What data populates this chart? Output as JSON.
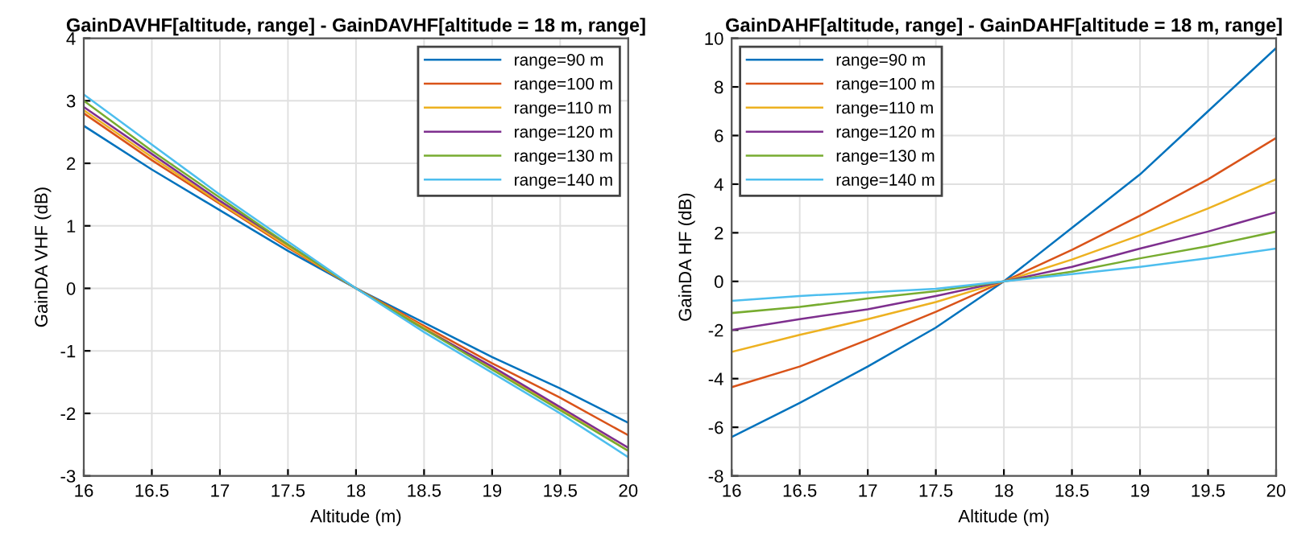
{
  "chart_data": [
    {
      "type": "line",
      "title": "GainDAVHF[altitude, range] - GainDAVHF[altitude = 18 m, range]",
      "xlabel": "Altitude (m)",
      "ylabel": "GainDA VHF (dB)",
      "x": [
        16,
        16.5,
        17,
        17.5,
        18,
        18.5,
        19,
        19.5,
        20
      ],
      "series": [
        {
          "name": "range=90 m",
          "color": "#0072bd",
          "values": [
            2.6,
            1.9,
            1.25,
            0.6,
            0,
            -0.55,
            -1.1,
            -1.6,
            -2.15
          ]
        },
        {
          "name": "range=100 m",
          "color": "#d95319",
          "values": [
            2.8,
            2.05,
            1.35,
            0.65,
            0,
            -0.6,
            -1.2,
            -1.75,
            -2.35
          ]
        },
        {
          "name": "range=110 m",
          "color": "#edb120",
          "values": [
            2.85,
            2.1,
            1.37,
            0.67,
            0,
            -0.63,
            -1.28,
            -1.93,
            -2.6
          ]
        },
        {
          "name": "range=120 m",
          "color": "#7e2f8e",
          "values": [
            2.9,
            2.15,
            1.4,
            0.7,
            0,
            -0.65,
            -1.25,
            -1.9,
            -2.55
          ]
        },
        {
          "name": "range=130 m",
          "color": "#77ac30",
          "values": [
            3.0,
            2.2,
            1.45,
            0.7,
            0,
            -0.65,
            -1.3,
            -1.95,
            -2.6
          ]
        },
        {
          "name": "range=140 m",
          "color": "#4dbeee",
          "values": [
            3.1,
            2.3,
            1.5,
            0.75,
            0,
            -0.7,
            -1.35,
            -2.0,
            -2.7
          ]
        }
      ],
      "xlim": [
        16,
        20
      ],
      "xticks": [
        16,
        16.5,
        17,
        17.5,
        18,
        18.5,
        19,
        19.5,
        20
      ],
      "ylim": [
        -3,
        4
      ],
      "yticks": [
        -3,
        -2,
        -1,
        0,
        1,
        2,
        3,
        4
      ],
      "grid": true,
      "legend": "top right",
      "line_style": "solid"
    },
    {
      "type": "line",
      "title": "GainDAHF[altitude, range] - GainDAHF[altitude = 18 m, range]",
      "xlabel": "Altitude (m)",
      "ylabel": "GainDA HF (dB)",
      "x": [
        16,
        16.5,
        17,
        17.5,
        18,
        18.5,
        19,
        19.5,
        20
      ],
      "series": [
        {
          "name": "range=90 m",
          "color": "#0072bd",
          "values": [
            -6.4,
            -5.0,
            -3.5,
            -1.9,
            0,
            2.2,
            4.4,
            7.0,
            9.6
          ]
        },
        {
          "name": "range=100 m",
          "color": "#d95319",
          "values": [
            -4.35,
            -3.5,
            -2.4,
            -1.25,
            0,
            1.3,
            2.7,
            4.2,
            5.9
          ]
        },
        {
          "name": "range=110 m",
          "color": "#edb120",
          "values": [
            -2.9,
            -2.2,
            -1.55,
            -0.85,
            0,
            0.9,
            1.9,
            3.0,
            4.2
          ]
        },
        {
          "name": "range=120 m",
          "color": "#7e2f8e",
          "values": [
            -2.0,
            -1.55,
            -1.15,
            -0.6,
            0,
            0.6,
            1.35,
            2.05,
            2.85
          ]
        },
        {
          "name": "range=130 m",
          "color": "#77ac30",
          "values": [
            -1.3,
            -1.05,
            -0.7,
            -0.4,
            0,
            0.4,
            0.95,
            1.45,
            2.05
          ]
        },
        {
          "name": "range=140 m",
          "color": "#4dbeee",
          "values": [
            -0.8,
            -0.6,
            -0.45,
            -0.3,
            0,
            0.3,
            0.6,
            0.95,
            1.35
          ]
        }
      ],
      "xlim": [
        16,
        20
      ],
      "xticks": [
        16,
        16.5,
        17,
        17.5,
        18,
        18.5,
        19,
        19.5,
        20
      ],
      "ylim": [
        -8,
        10
      ],
      "yticks": [
        -8,
        -6,
        -4,
        -2,
        0,
        2,
        4,
        6,
        8,
        10
      ],
      "grid": true,
      "legend": "top left",
      "line_style": "solid"
    }
  ]
}
